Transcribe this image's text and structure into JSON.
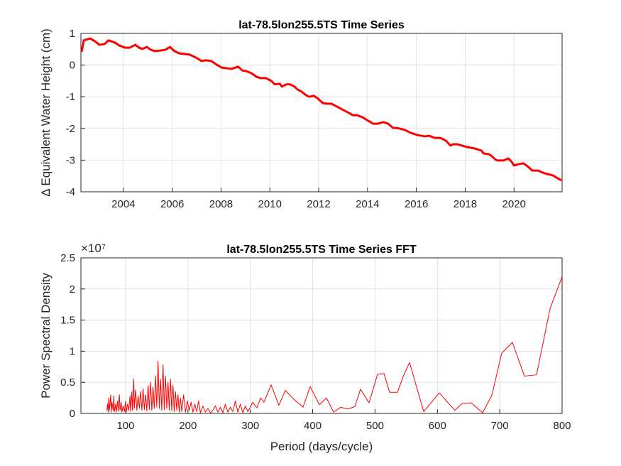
{
  "chart_data": [
    {
      "type": "line",
      "title": "lat-78.5lon255.5TS Time Series",
      "ylabel": "Δ  Equivalent Water Height (cm)",
      "color": "#ff0000",
      "grid": true,
      "xlim": [
        2002.26,
        2021.97
      ],
      "ylim": [
        -4,
        1
      ],
      "xticks": [
        2004,
        2006,
        2008,
        2010,
        2012,
        2014,
        2016,
        2018,
        2020
      ],
      "yticks": [
        -4,
        -3,
        -2,
        -1,
        0,
        1
      ],
      "x": [
        2002.29,
        2002.38,
        2002.64,
        2002.84,
        2003.01,
        2003.22,
        2003.39,
        2003.65,
        2003.83,
        2004.06,
        2004.26,
        2004.49,
        2004.64,
        2004.78,
        2004.96,
        2005.13,
        2005.3,
        2005.51,
        2005.71,
        2005.91,
        2006.09,
        2006.29,
        2006.49,
        2006.72,
        2007.01,
        2007.19,
        2007.39,
        2007.59,
        2007.83,
        2008.03,
        2008.23,
        2008.43,
        2008.7,
        2008.87,
        2009.04,
        2009.25,
        2009.45,
        2009.62,
        2009.83,
        2010.06,
        2010.2,
        2010.41,
        2010.49,
        2010.67,
        2010.84,
        2011.01,
        2011.13,
        2011.3,
        2011.48,
        2011.62,
        2011.8,
        2011.97,
        2012.17,
        2012.35,
        2012.52,
        2012.75,
        2012.96,
        2013.19,
        2013.39,
        2013.57,
        2013.8,
        2014.03,
        2014.23,
        2014.43,
        2014.64,
        2014.84,
        2015.04,
        2015.3,
        2015.54,
        2015.77,
        2016.06,
        2016.35,
        2016.52,
        2016.75,
        2016.99,
        2017.22,
        2017.39,
        2017.51,
        2017.68,
        2018.09,
        2018.38,
        2018.67,
        2018.75,
        2018.96,
        2019.07,
        2019.25,
        2019.33,
        2019.57,
        2019.77,
        2019.91,
        2020.0,
        2020.17,
        2020.38,
        2020.55,
        2020.75,
        2020.99,
        2021.16,
        2021.36,
        2021.59,
        2021.74,
        2021.94
      ],
      "values": [
        0.42,
        0.78,
        0.84,
        0.75,
        0.64,
        0.66,
        0.78,
        0.71,
        0.62,
        0.55,
        0.55,
        0.64,
        0.55,
        0.51,
        0.57,
        0.48,
        0.44,
        0.46,
        0.48,
        0.57,
        0.44,
        0.37,
        0.35,
        0.33,
        0.22,
        0.13,
        0.15,
        0.13,
        0.01,
        -0.08,
        -0.1,
        -0.12,
        -0.05,
        -0.17,
        -0.19,
        -0.26,
        -0.37,
        -0.41,
        -0.41,
        -0.5,
        -0.61,
        -0.59,
        -0.68,
        -0.61,
        -0.61,
        -0.68,
        -0.77,
        -0.84,
        -0.95,
        -1.0,
        -0.97,
        -1.06,
        -1.2,
        -1.22,
        -1.22,
        -1.31,
        -1.4,
        -1.49,
        -1.58,
        -1.58,
        -1.65,
        -1.76,
        -1.85,
        -1.85,
        -1.8,
        -1.85,
        -1.98,
        -2.0,
        -2.05,
        -2.14,
        -2.21,
        -2.25,
        -2.23,
        -2.3,
        -2.3,
        -2.39,
        -2.54,
        -2.5,
        -2.5,
        -2.59,
        -2.63,
        -2.7,
        -2.79,
        -2.81,
        -2.86,
        -2.99,
        -3.01,
        -3.01,
        -2.95,
        -3.06,
        -3.17,
        -3.13,
        -3.1,
        -3.19,
        -3.33,
        -3.33,
        -3.39,
        -3.44,
        -3.48,
        -3.55,
        -3.64
      ]
    },
    {
      "type": "line",
      "title": "lat-78.5lon255.5TS Time Series FFT",
      "xlabel": "Period (days/cycle)",
      "ylabel": "Power Spectral Density",
      "y_multiplier": "×10⁷",
      "color": "#ff0000",
      "grid": true,
      "xlim": [
        28.3,
        800
      ],
      "ylim": [
        0,
        2.5
      ],
      "xticks": [
        100,
        200,
        300,
        400,
        500,
        600,
        700,
        800
      ],
      "yticks": [
        0,
        0.5,
        1,
        1.5,
        2,
        2.5
      ],
      "x": [
        70,
        71,
        72,
        73,
        74,
        76,
        77,
        78,
        80,
        81,
        82,
        84,
        85,
        87,
        88,
        90,
        91,
        93,
        94,
        96,
        98,
        100,
        101,
        103,
        105,
        107,
        108,
        110,
        111,
        113,
        114,
        116,
        118,
        120,
        122,
        124,
        126,
        128,
        130,
        132,
        134,
        136,
        138,
        140,
        142,
        144,
        146,
        148,
        150,
        152,
        154,
        156,
        158,
        160,
        162,
        164,
        166,
        168,
        170,
        172,
        174,
        176,
        178,
        180,
        182,
        184,
        186,
        188,
        190,
        193,
        196,
        199,
        202,
        205,
        208,
        211,
        214,
        217,
        220,
        224,
        228,
        232,
        236,
        240,
        244,
        248,
        252,
        256,
        260,
        264,
        268,
        272,
        276,
        280,
        284,
        288,
        292,
        296,
        300,
        303.7,
        310.6,
        316.3,
        321.9,
        333.3,
        345.8,
        356.1,
        369.7,
        384.5,
        395.9,
        410.7,
        422.1,
        433.5,
        444.9,
        456.3,
        467.6,
        476.7,
        490.4,
        504,
        514.3,
        523.4,
        536,
        545,
        555.3,
        578,
        603,
        628,
        639.5,
        654.3,
        672.5,
        687.3,
        703.2,
        720.3,
        739.6,
        759,
        780.6,
        800
      ],
      "values": [
        0.05,
        0.15,
        0.02,
        0.25,
        0.05,
        0.3,
        0.02,
        0.18,
        0.05,
        0.28,
        0.03,
        0.15,
        0.02,
        0.2,
        0.04,
        0.3,
        0.05,
        0.18,
        0.02,
        0.12,
        0.03,
        0.2,
        0.02,
        0.15,
        0.05,
        0.28,
        0.03,
        0.35,
        0.05,
        0.55,
        0.08,
        0.38,
        0.05,
        0.28,
        0.08,
        0.35,
        0.05,
        0.4,
        0.06,
        0.3,
        0.04,
        0.45,
        0.06,
        0.5,
        0.05,
        0.42,
        0.08,
        0.6,
        0.1,
        0.84,
        0.08,
        0.55,
        0.05,
        0.78,
        0.06,
        0.6,
        0.08,
        0.5,
        0.05,
        0.55,
        0.04,
        0.45,
        0.03,
        0.35,
        0.05,
        0.3,
        0.02,
        0.25,
        0.03,
        0.3,
        0.02,
        0.2,
        0.05,
        0.18,
        0.02,
        0.15,
        0.03,
        0.2,
        0.01,
        0.12,
        0.02,
        0.08,
        0.01,
        0.05,
        0.12,
        0.02,
        0.1,
        0.01,
        0.15,
        0.02,
        0.1,
        0.03,
        0.2,
        0.02,
        0.15,
        0.01,
        0.12,
        0.03,
        0.1,
        0.18,
        0.09,
        0.25,
        0.18,
        0.46,
        0.13,
        0.37,
        0.23,
        0.1,
        0.43,
        0.14,
        0.25,
        0.02,
        0.1,
        0.07,
        0.11,
        0.39,
        0.17,
        0.63,
        0.64,
        0.34,
        0.34,
        0.59,
        0.82,
        0.03,
        0.33,
        0.05,
        0.16,
        0.17,
        0.01,
        0.29,
        0.97,
        1.14,
        0.6,
        0.62,
        1.68,
        2.2
      ]
    }
  ]
}
